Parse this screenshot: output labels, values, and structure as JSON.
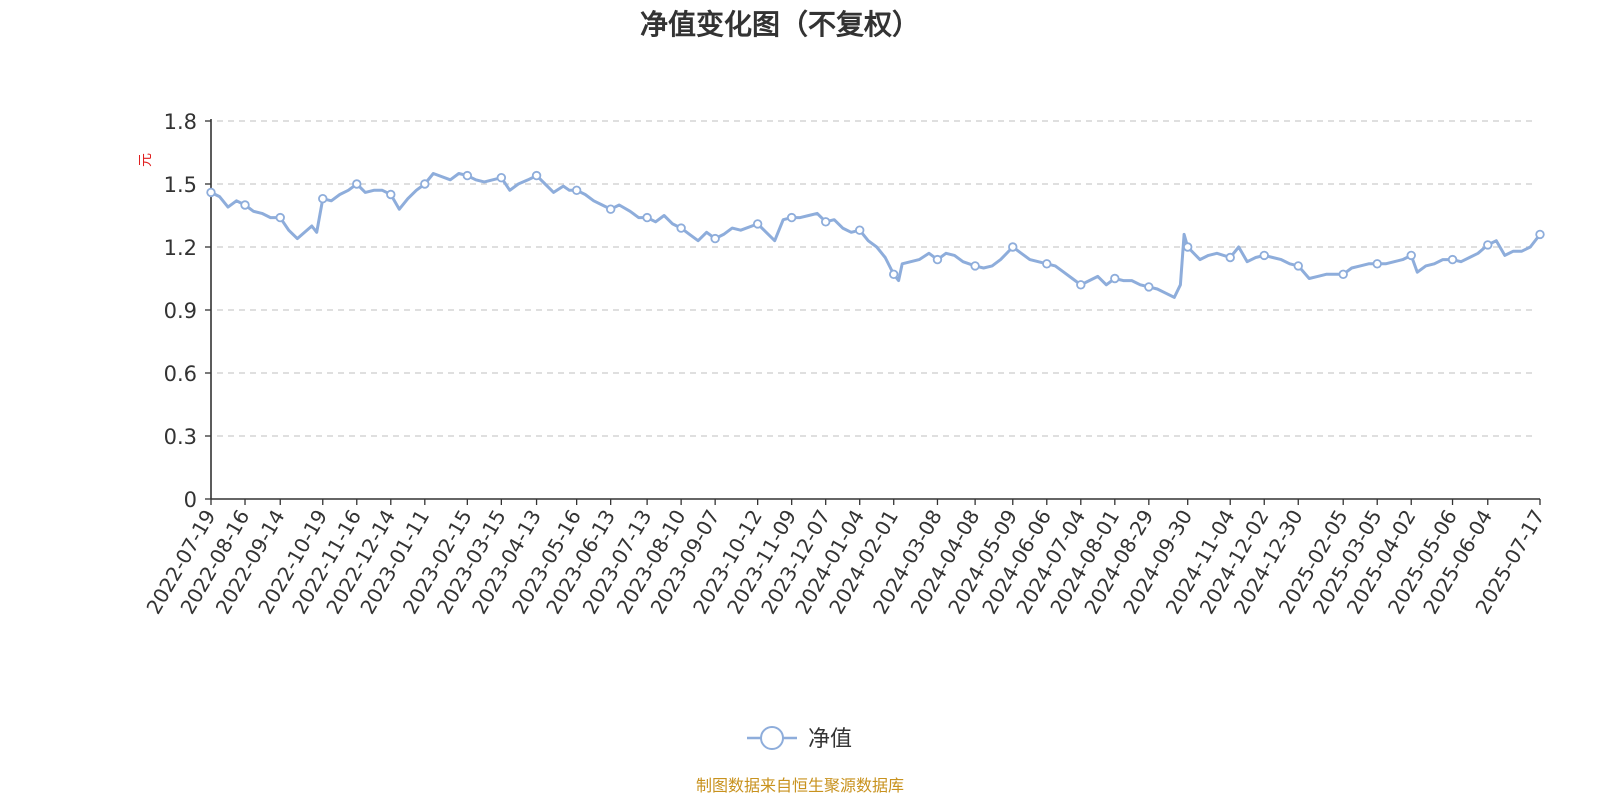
{
  "chart_data": {
    "type": "line",
    "title": "净值变化图（不复权）",
    "ylabel": "元",
    "ylim": [
      0,
      1.8
    ],
    "yticks": [
      "0",
      "0.3",
      "0.6",
      "0.9",
      "1.2",
      "1.5",
      "1.8"
    ],
    "grid": true,
    "legend_position": "bottom-center",
    "x_tick_labels": [
      "2022-07-19",
      "2022-08-16",
      "2022-09-14",
      "2022-10-19",
      "2022-11-16",
      "2022-12-14",
      "2023-01-11",
      "2023-02-15",
      "2023-03-15",
      "2023-04-13",
      "2023-05-16",
      "2023-06-13",
      "2023-07-13",
      "2023-08-10",
      "2023-09-07",
      "2023-10-12",
      "2023-11-09",
      "2023-12-07",
      "2024-01-04",
      "2024-02-01",
      "2024-03-08",
      "2024-04-08",
      "2024-05-09",
      "2024-06-06",
      "2024-07-04",
      "2024-08-01",
      "2024-08-29",
      "2024-09-30",
      "2024-11-04",
      "2024-12-02",
      "2024-12-30",
      "2025-02-05",
      "2025-03-05",
      "2025-04-02",
      "2025-05-06",
      "2025-06-04",
      "2025-07-17"
    ],
    "series": [
      {
        "name": "净值",
        "color": "#8eaddb",
        "points": [
          [
            "2022-07-19",
            1.46
          ],
          [
            "2022-07-26",
            1.44
          ],
          [
            "2022-08-02",
            1.39
          ],
          [
            "2022-08-09",
            1.42
          ],
          [
            "2022-08-16",
            1.4
          ],
          [
            "2022-08-23",
            1.37
          ],
          [
            "2022-08-30",
            1.36
          ],
          [
            "2022-09-06",
            1.34
          ],
          [
            "2022-09-14",
            1.34
          ],
          [
            "2022-09-21",
            1.28
          ],
          [
            "2022-09-28",
            1.24
          ],
          [
            "2022-10-10",
            1.3
          ],
          [
            "2022-10-14",
            1.27
          ],
          [
            "2022-10-19",
            1.43
          ],
          [
            "2022-10-26",
            1.42
          ],
          [
            "2022-11-02",
            1.45
          ],
          [
            "2022-11-09",
            1.47
          ],
          [
            "2022-11-16",
            1.5
          ],
          [
            "2022-11-23",
            1.46
          ],
          [
            "2022-11-30",
            1.47
          ],
          [
            "2022-12-07",
            1.47
          ],
          [
            "2022-12-14",
            1.45
          ],
          [
            "2022-12-21",
            1.38
          ],
          [
            "2022-12-28",
            1.43
          ],
          [
            "2023-01-04",
            1.47
          ],
          [
            "2023-01-11",
            1.5
          ],
          [
            "2023-01-18",
            1.55
          ],
          [
            "2023-02-01",
            1.52
          ],
          [
            "2023-02-08",
            1.55
          ],
          [
            "2023-02-15",
            1.54
          ],
          [
            "2023-02-22",
            1.52
          ],
          [
            "2023-03-01",
            1.51
          ],
          [
            "2023-03-08",
            1.52
          ],
          [
            "2023-03-15",
            1.53
          ],
          [
            "2023-03-22",
            1.47
          ],
          [
            "2023-03-29",
            1.5
          ],
          [
            "2023-04-06",
            1.52
          ],
          [
            "2023-04-13",
            1.54
          ],
          [
            "2023-04-20",
            1.5
          ],
          [
            "2023-04-27",
            1.46
          ],
          [
            "2023-05-05",
            1.49
          ],
          [
            "2023-05-10",
            1.47
          ],
          [
            "2023-05-16",
            1.47
          ],
          [
            "2023-05-23",
            1.45
          ],
          [
            "2023-05-30",
            1.42
          ],
          [
            "2023-06-06",
            1.4
          ],
          [
            "2023-06-13",
            1.38
          ],
          [
            "2023-06-20",
            1.4
          ],
          [
            "2023-06-29",
            1.37
          ],
          [
            "2023-07-06",
            1.34
          ],
          [
            "2023-07-13",
            1.34
          ],
          [
            "2023-07-20",
            1.32
          ],
          [
            "2023-07-27",
            1.35
          ],
          [
            "2023-08-03",
            1.31
          ],
          [
            "2023-08-10",
            1.29
          ],
          [
            "2023-08-17",
            1.26
          ],
          [
            "2023-08-24",
            1.23
          ],
          [
            "2023-08-31",
            1.27
          ],
          [
            "2023-09-07",
            1.24
          ],
          [
            "2023-09-14",
            1.26
          ],
          [
            "2023-09-21",
            1.29
          ],
          [
            "2023-09-28",
            1.28
          ],
          [
            "2023-10-12",
            1.31
          ],
          [
            "2023-10-19",
            1.27
          ],
          [
            "2023-10-26",
            1.23
          ],
          [
            "2023-11-02",
            1.33
          ],
          [
            "2023-11-09",
            1.34
          ],
          [
            "2023-11-16",
            1.34
          ],
          [
            "2023-11-23",
            1.35
          ],
          [
            "2023-11-30",
            1.36
          ],
          [
            "2023-12-07",
            1.32
          ],
          [
            "2023-12-14",
            1.33
          ],
          [
            "2023-12-21",
            1.29
          ],
          [
            "2023-12-28",
            1.27
          ],
          [
            "2024-01-04",
            1.28
          ],
          [
            "2024-01-11",
            1.23
          ],
          [
            "2024-01-18",
            1.2
          ],
          [
            "2024-01-25",
            1.15
          ],
          [
            "2024-02-01",
            1.07
          ],
          [
            "2024-02-05",
            1.04
          ],
          [
            "2024-02-08",
            1.12
          ],
          [
            "2024-02-22",
            1.14
          ],
          [
            "2024-03-01",
            1.17
          ],
          [
            "2024-03-08",
            1.14
          ],
          [
            "2024-03-15",
            1.17
          ],
          [
            "2024-03-22",
            1.16
          ],
          [
            "2024-03-29",
            1.13
          ],
          [
            "2024-04-08",
            1.11
          ],
          [
            "2024-04-15",
            1.1
          ],
          [
            "2024-04-22",
            1.11
          ],
          [
            "2024-04-29",
            1.14
          ],
          [
            "2024-05-09",
            1.2
          ],
          [
            "2024-05-16",
            1.17
          ],
          [
            "2024-05-23",
            1.14
          ],
          [
            "2024-05-30",
            1.13
          ],
          [
            "2024-06-06",
            1.12
          ],
          [
            "2024-06-13",
            1.11
          ],
          [
            "2024-06-20",
            1.08
          ],
          [
            "2024-06-27",
            1.05
          ],
          [
            "2024-07-04",
            1.02
          ],
          [
            "2024-07-11",
            1.04
          ],
          [
            "2024-07-18",
            1.06
          ],
          [
            "2024-07-25",
            1.02
          ],
          [
            "2024-08-01",
            1.05
          ],
          [
            "2024-08-08",
            1.04
          ],
          [
            "2024-08-15",
            1.04
          ],
          [
            "2024-08-22",
            1.02
          ],
          [
            "2024-08-29",
            1.01
          ],
          [
            "2024-09-05",
            1.0
          ],
          [
            "2024-09-12",
            0.98
          ],
          [
            "2024-09-19",
            0.96
          ],
          [
            "2024-09-24",
            1.02
          ],
          [
            "2024-09-27",
            1.26
          ],
          [
            "2024-09-30",
            1.2
          ],
          [
            "2024-10-10",
            1.14
          ],
          [
            "2024-10-17",
            1.16
          ],
          [
            "2024-10-24",
            1.17
          ],
          [
            "2024-11-04",
            1.15
          ],
          [
            "2024-11-11",
            1.2
          ],
          [
            "2024-11-18",
            1.13
          ],
          [
            "2024-11-25",
            1.15
          ],
          [
            "2024-12-02",
            1.16
          ],
          [
            "2024-12-09",
            1.15
          ],
          [
            "2024-12-16",
            1.14
          ],
          [
            "2024-12-23",
            1.12
          ],
          [
            "2024-12-30",
            1.11
          ],
          [
            "2025-01-08",
            1.05
          ],
          [
            "2025-01-15",
            1.06
          ],
          [
            "2025-01-22",
            1.07
          ],
          [
            "2025-02-05",
            1.07
          ],
          [
            "2025-02-12",
            1.1
          ],
          [
            "2025-02-19",
            1.11
          ],
          [
            "2025-02-26",
            1.12
          ],
          [
            "2025-03-05",
            1.12
          ],
          [
            "2025-03-12",
            1.12
          ],
          [
            "2025-03-19",
            1.13
          ],
          [
            "2025-03-26",
            1.14
          ],
          [
            "2025-04-02",
            1.16
          ],
          [
            "2025-04-07",
            1.08
          ],
          [
            "2025-04-14",
            1.11
          ],
          [
            "2025-04-21",
            1.12
          ],
          [
            "2025-04-28",
            1.14
          ],
          [
            "2025-05-06",
            1.14
          ],
          [
            "2025-05-13",
            1.13
          ],
          [
            "2025-05-20",
            1.15
          ],
          [
            "2025-05-27",
            1.17
          ],
          [
            "2025-06-04",
            1.21
          ],
          [
            "2025-06-11",
            1.23
          ],
          [
            "2025-06-18",
            1.16
          ],
          [
            "2025-06-25",
            1.18
          ],
          [
            "2025-07-02",
            1.18
          ],
          [
            "2025-07-09",
            1.2
          ],
          [
            "2025-07-17",
            1.26
          ]
        ],
        "markers": [
          "2022-07-19",
          "2022-08-16",
          "2022-09-14",
          "2022-10-19",
          "2022-11-16",
          "2022-12-14",
          "2023-01-11",
          "2023-02-15",
          "2023-03-15",
          "2023-04-13",
          "2023-05-16",
          "2023-06-13",
          "2023-07-13",
          "2023-08-10",
          "2023-09-07",
          "2023-10-12",
          "2023-11-09",
          "2023-12-07",
          "2024-01-04",
          "2024-02-01",
          "2024-03-08",
          "2024-04-08",
          "2024-05-09",
          "2024-06-06",
          "2024-07-04",
          "2024-08-01",
          "2024-08-29",
          "2024-09-30",
          "2024-11-04",
          "2024-12-02",
          "2024-12-30",
          "2025-02-05",
          "2025-03-05",
          "2025-04-02",
          "2025-05-06",
          "2025-06-04",
          "2025-07-17"
        ]
      }
    ]
  },
  "footer": {
    "source": "制图数据来自恒生聚源数据库"
  },
  "colors": {
    "line": "#8eaddb",
    "grid": "#cccccc",
    "axis": "#333333",
    "unit": "#e01f1f",
    "source": "#c8921e"
  }
}
